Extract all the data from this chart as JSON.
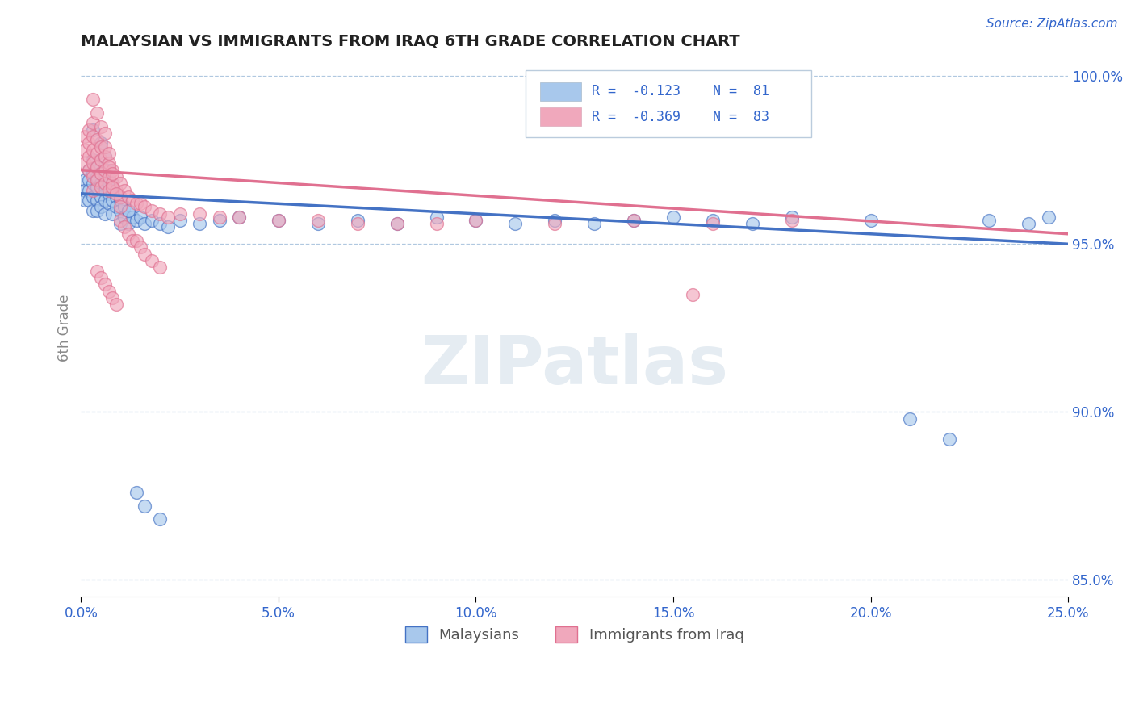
{
  "title": "MALAYSIAN VS IMMIGRANTS FROM IRAQ 6TH GRADE CORRELATION CHART",
  "source": "Source: ZipAtlas.com",
  "ylabel": "6th Grade",
  "xlim": [
    0.0,
    0.25
  ],
  "ylim": [
    0.845,
    1.005
  ],
  "x_ticks": [
    0.0,
    0.05,
    0.1,
    0.15,
    0.2,
    0.25
  ],
  "x_tick_labels": [
    "0.0%",
    "5.0%",
    "10.0%",
    "15.0%",
    "20.0%",
    "25.0%"
  ],
  "y_ticks": [
    0.85,
    0.9,
    0.95,
    1.0
  ],
  "y_tick_labels": [
    "85.0%",
    "90.0%",
    "95.0%",
    "100.0%"
  ],
  "legend_labels": [
    "Malaysians",
    "Immigrants from Iraq"
  ],
  "blue_color": "#A8C8EC",
  "pink_color": "#F0A8BC",
  "blue_line_color": "#4472C4",
  "pink_line_color": "#E07090",
  "R_blue": -0.123,
  "N_blue": 81,
  "R_pink": -0.369,
  "N_pink": 83,
  "legend_R_color": "#3366CC",
  "title_color": "#1a1a2e",
  "background_color": "#ffffff",
  "grid_color": "#b0c8e0",
  "blue_scatter_x": [
    0.001,
    0.001,
    0.001,
    0.002,
    0.002,
    0.002,
    0.002,
    0.003,
    0.003,
    0.003,
    0.003,
    0.003,
    0.004,
    0.004,
    0.004,
    0.004,
    0.004,
    0.005,
    0.005,
    0.005,
    0.005,
    0.006,
    0.006,
    0.006,
    0.006,
    0.007,
    0.007,
    0.007,
    0.008,
    0.008,
    0.008,
    0.009,
    0.009,
    0.01,
    0.01,
    0.01,
    0.011,
    0.011,
    0.012,
    0.012,
    0.013,
    0.014,
    0.015,
    0.016,
    0.018,
    0.02,
    0.022,
    0.025,
    0.03,
    0.035,
    0.04,
    0.05,
    0.06,
    0.07,
    0.08,
    0.09,
    0.1,
    0.11,
    0.12,
    0.13,
    0.14,
    0.15,
    0.16,
    0.17,
    0.18,
    0.2,
    0.21,
    0.22,
    0.23,
    0.24,
    0.245,
    0.003,
    0.005,
    0.006,
    0.007,
    0.008,
    0.01,
    0.012,
    0.014,
    0.016,
    0.02
  ],
  "blue_scatter_y": [
    0.969,
    0.966,
    0.963,
    0.972,
    0.969,
    0.966,
    0.963,
    0.975,
    0.971,
    0.968,
    0.964,
    0.96,
    0.973,
    0.97,
    0.967,
    0.963,
    0.96,
    0.971,
    0.968,
    0.964,
    0.961,
    0.97,
    0.966,
    0.963,
    0.959,
    0.968,
    0.965,
    0.962,
    0.966,
    0.963,
    0.959,
    0.964,
    0.961,
    0.963,
    0.96,
    0.956,
    0.961,
    0.958,
    0.96,
    0.956,
    0.958,
    0.957,
    0.958,
    0.956,
    0.957,
    0.956,
    0.955,
    0.957,
    0.956,
    0.957,
    0.958,
    0.957,
    0.956,
    0.957,
    0.956,
    0.958,
    0.957,
    0.956,
    0.957,
    0.956,
    0.957,
    0.958,
    0.957,
    0.956,
    0.958,
    0.957,
    0.898,
    0.892,
    0.957,
    0.956,
    0.958,
    0.984,
    0.98,
    0.976,
    0.972,
    0.968,
    0.964,
    0.96,
    0.876,
    0.872,
    0.868
  ],
  "pink_scatter_x": [
    0.001,
    0.001,
    0.001,
    0.002,
    0.002,
    0.002,
    0.002,
    0.003,
    0.003,
    0.003,
    0.003,
    0.003,
    0.003,
    0.004,
    0.004,
    0.004,
    0.004,
    0.005,
    0.005,
    0.005,
    0.005,
    0.006,
    0.006,
    0.006,
    0.007,
    0.007,
    0.007,
    0.008,
    0.008,
    0.009,
    0.009,
    0.01,
    0.01,
    0.011,
    0.012,
    0.013,
    0.014,
    0.015,
    0.016,
    0.018,
    0.02,
    0.022,
    0.025,
    0.03,
    0.035,
    0.04,
    0.05,
    0.06,
    0.07,
    0.08,
    0.09,
    0.1,
    0.12,
    0.14,
    0.16,
    0.18,
    0.003,
    0.004,
    0.005,
    0.006,
    0.006,
    0.007,
    0.007,
    0.008,
    0.008,
    0.009,
    0.01,
    0.01,
    0.011,
    0.012,
    0.013,
    0.014,
    0.015,
    0.016,
    0.018,
    0.02,
    0.004,
    0.005,
    0.006,
    0.007,
    0.008,
    0.009,
    0.155
  ],
  "pink_scatter_y": [
    0.982,
    0.978,
    0.974,
    0.984,
    0.98,
    0.976,
    0.972,
    0.986,
    0.982,
    0.978,
    0.974,
    0.97,
    0.966,
    0.981,
    0.977,
    0.973,
    0.969,
    0.979,
    0.975,
    0.971,
    0.967,
    0.976,
    0.972,
    0.968,
    0.974,
    0.97,
    0.966,
    0.972,
    0.968,
    0.97,
    0.966,
    0.968,
    0.964,
    0.966,
    0.964,
    0.963,
    0.962,
    0.962,
    0.961,
    0.96,
    0.959,
    0.958,
    0.959,
    0.959,
    0.958,
    0.958,
    0.957,
    0.957,
    0.956,
    0.956,
    0.956,
    0.957,
    0.956,
    0.957,
    0.956,
    0.957,
    0.993,
    0.989,
    0.985,
    0.983,
    0.979,
    0.977,
    0.973,
    0.971,
    0.967,
    0.965,
    0.961,
    0.957,
    0.955,
    0.953,
    0.951,
    0.951,
    0.949,
    0.947,
    0.945,
    0.943,
    0.942,
    0.94,
    0.938,
    0.936,
    0.934,
    0.932,
    0.935
  ]
}
